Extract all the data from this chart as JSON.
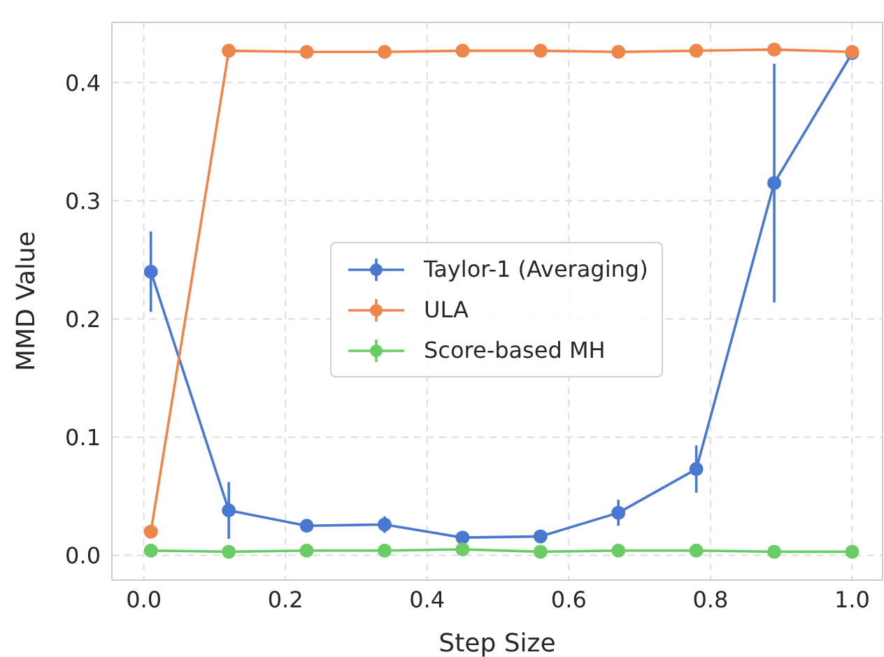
{
  "chart_data": {
    "type": "line",
    "xlabel": "Step Size",
    "ylabel": "MMD Value",
    "x": [
      0.01,
      0.12,
      0.23,
      0.34,
      0.45,
      0.56,
      0.67,
      0.78,
      0.89,
      1.0
    ],
    "series": [
      {
        "name": "Taylor-1 (Averaging)",
        "color": "#4878d0",
        "values": [
          0.24,
          0.038,
          0.025,
          0.026,
          0.015,
          0.016,
          0.036,
          0.073,
          0.315,
          0.425
        ],
        "errors": [
          0.034,
          0.024,
          null,
          0.007,
          null,
          null,
          0.011,
          0.02,
          0.101,
          null
        ]
      },
      {
        "name": "ULA",
        "color": "#ee854a",
        "values": [
          0.02,
          0.427,
          0.426,
          0.426,
          0.427,
          0.427,
          0.426,
          0.427,
          0.428,
          0.426
        ]
      },
      {
        "name": "Score-based MH",
        "color": "#6acc64",
        "values": [
          0.004,
          0.003,
          0.004,
          0.004,
          0.005,
          0.003,
          0.004,
          0.004,
          0.003,
          0.003
        ]
      }
    ],
    "xlim": [
      -0.045,
      1.043
    ],
    "ylim": [
      -0.021,
      0.451
    ],
    "xticks": [
      {
        "value": 0,
        "label": "0.0"
      },
      {
        "value": 0.2,
        "label": "0.2"
      },
      {
        "value": 0.4,
        "label": "0.4"
      },
      {
        "value": 0.6,
        "label": "0.6"
      },
      {
        "value": 0.8,
        "label": "0.8"
      },
      {
        "value": 1.0,
        "label": "1.0"
      }
    ],
    "yticks": [
      {
        "value": 0,
        "label": "0.0"
      },
      {
        "value": 0.1,
        "label": "0.1"
      },
      {
        "value": 0.2,
        "label": "0.2"
      },
      {
        "value": 0.3,
        "label": "0.3"
      },
      {
        "value": 0.4,
        "label": "0.4"
      }
    ],
    "grid": true,
    "legend": "center",
    "marker": "circle",
    "line_style": "solid"
  }
}
